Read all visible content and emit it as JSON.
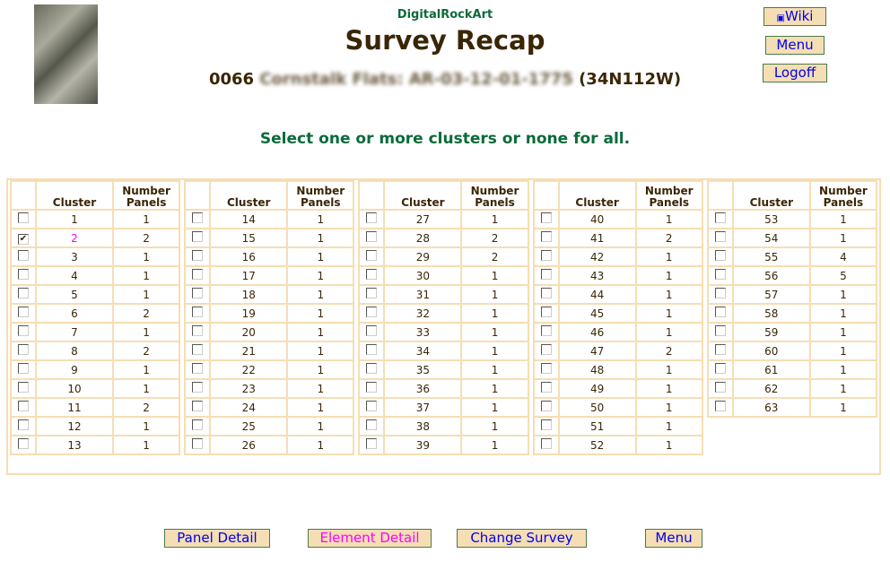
{
  "header": {
    "brand": "DigitalRockArt",
    "title": "Survey Recap",
    "survey_number": "0066",
    "survey_name": "Cornstalk Flats: AR-03-12-01-1775",
    "survey_location": "(34N112W)"
  },
  "top_nav": {
    "wiki": "Wiki",
    "menu": "Menu",
    "logoff": "Logoff"
  },
  "prompt": "Select one or more clusters or none for all.",
  "table_headers": {
    "cluster": "Cluster",
    "panels_line1": "Number",
    "panels_line2": "Panels"
  },
  "clusters": [
    [
      [
        1,
        1
      ],
      [
        2,
        2
      ],
      [
        3,
        1
      ],
      [
        4,
        1
      ],
      [
        5,
        1
      ],
      [
        6,
        2
      ],
      [
        7,
        1
      ],
      [
        8,
        2
      ],
      [
        9,
        1
      ],
      [
        10,
        1
      ],
      [
        11,
        2
      ],
      [
        12,
        1
      ],
      [
        13,
        1
      ]
    ],
    [
      [
        14,
        1
      ],
      [
        15,
        1
      ],
      [
        16,
        1
      ],
      [
        17,
        1
      ],
      [
        18,
        1
      ],
      [
        19,
        1
      ],
      [
        20,
        1
      ],
      [
        21,
        1
      ],
      [
        22,
        1
      ],
      [
        23,
        1
      ],
      [
        24,
        1
      ],
      [
        25,
        1
      ],
      [
        26,
        1
      ]
    ],
    [
      [
        27,
        1
      ],
      [
        28,
        2
      ],
      [
        29,
        2
      ],
      [
        30,
        1
      ],
      [
        31,
        1
      ],
      [
        32,
        1
      ],
      [
        33,
        1
      ],
      [
        34,
        1
      ],
      [
        35,
        1
      ],
      [
        36,
        1
      ],
      [
        37,
        1
      ],
      [
        38,
        1
      ],
      [
        39,
        1
      ]
    ],
    [
      [
        40,
        1
      ],
      [
        41,
        2
      ],
      [
        42,
        1
      ],
      [
        43,
        1
      ],
      [
        44,
        1
      ],
      [
        45,
        1
      ],
      [
        46,
        1
      ],
      [
        47,
        2
      ],
      [
        48,
        1
      ],
      [
        49,
        1
      ],
      [
        50,
        1
      ],
      [
        51,
        1
      ],
      [
        52,
        1
      ]
    ],
    [
      [
        53,
        1
      ],
      [
        54,
        1
      ],
      [
        55,
        4
      ],
      [
        56,
        5
      ],
      [
        57,
        1
      ],
      [
        58,
        1
      ],
      [
        59,
        1
      ],
      [
        60,
        1
      ],
      [
        61,
        1
      ],
      [
        62,
        1
      ],
      [
        63,
        1
      ]
    ]
  ],
  "selected_clusters": [
    2
  ],
  "bottom_buttons": {
    "panel_detail": "Panel Detail",
    "element_detail": "Element Detail",
    "change_survey": "Change Survey",
    "menu": "Menu"
  },
  "colors": {
    "accent_border": "#f5deb3",
    "button_bg": "#f5deb3",
    "link": "#0000ee",
    "selected": "#ff00ff",
    "heading_green": "#0a6b3a"
  }
}
